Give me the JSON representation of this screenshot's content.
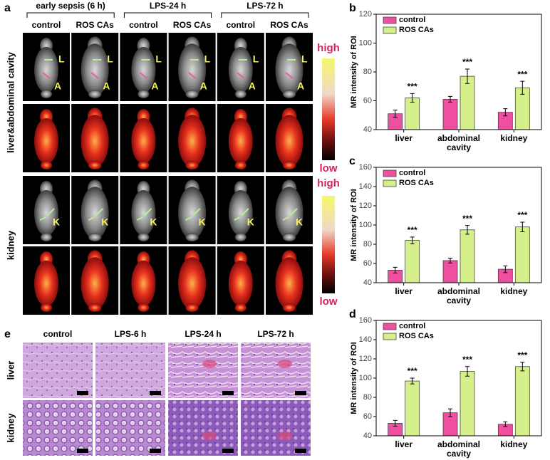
{
  "panel_labels": [
    "a",
    "b",
    "c",
    "d",
    "e"
  ],
  "mri": {
    "groups": [
      "early sepsis (6 h)",
      "LPS-24 h",
      "LPS-72 h"
    ],
    "columns": [
      "control",
      "ROS CAs",
      "control",
      "ROS CAs",
      "control",
      "ROS CAs"
    ],
    "rows": [
      "liver&abdominal cavity",
      "kidney"
    ],
    "organ_marks": {
      "liver": "L",
      "abdominal": "A",
      "kidney": "K"
    },
    "colorbar": {
      "high": "high",
      "low": "low"
    }
  },
  "histology": {
    "columns": [
      "control",
      "LPS-6 h",
      "LPS-24 h",
      "LPS-72 h"
    ],
    "rows": [
      "liver",
      "kidney"
    ]
  },
  "chart_data": [
    {
      "type": "bar",
      "y_label": "MR intensity of ROI",
      "categories": [
        "liver",
        "abdominal cavity",
        "kidney"
      ],
      "ylim": [
        40,
        120
      ],
      "yticks": [
        40,
        60,
        80,
        100,
        120
      ],
      "legend": "upper-left",
      "series": [
        {
          "name": "control",
          "color": "#ef4f9f",
          "values": [
            51,
            61,
            52
          ],
          "errors": [
            2.5,
            2,
            2.5
          ]
        },
        {
          "name": "ROS CAs",
          "color": "#d5f08b",
          "values": [
            62,
            77,
            69
          ],
          "errors": [
            3,
            5,
            4.5
          ],
          "annotations": [
            "***",
            "***",
            "***"
          ]
        }
      ]
    },
    {
      "type": "bar",
      "y_label": "MR intensity of ROI",
      "categories": [
        "liver",
        "abdominal cavity",
        "kidney"
      ],
      "ylim": [
        40,
        160
      ],
      "yticks": [
        40,
        60,
        80,
        100,
        120,
        140,
        160
      ],
      "legend": "upper-left",
      "series": [
        {
          "name": "control",
          "color": "#ef4f9f",
          "values": [
            53,
            63,
            54
          ],
          "errors": [
            3,
            2.5,
            3.5
          ]
        },
        {
          "name": "ROS CAs",
          "color": "#d5f08b",
          "values": [
            84,
            95,
            98
          ],
          "errors": [
            3.5,
            4.5,
            5
          ],
          "annotations": [
            "***",
            "***",
            "***"
          ]
        }
      ]
    },
    {
      "type": "bar",
      "y_label": "MR intensity of ROI",
      "categories": [
        "liver",
        "abdominal cavity",
        "kidney"
      ],
      "ylim": [
        40,
        160
      ],
      "yticks": [
        40,
        60,
        80,
        100,
        120,
        140,
        160
      ],
      "legend": "upper-left",
      "series": [
        {
          "name": "control",
          "color": "#ef4f9f",
          "values": [
            53,
            64,
            52
          ],
          "errors": [
            3,
            4,
            2.5
          ]
        },
        {
          "name": "ROS CAs",
          "color": "#d5f08b",
          "values": [
            97,
            107,
            112
          ],
          "errors": [
            3,
            5,
            4.5
          ],
          "annotations": [
            "***",
            "***",
            "***"
          ]
        }
      ]
    }
  ]
}
